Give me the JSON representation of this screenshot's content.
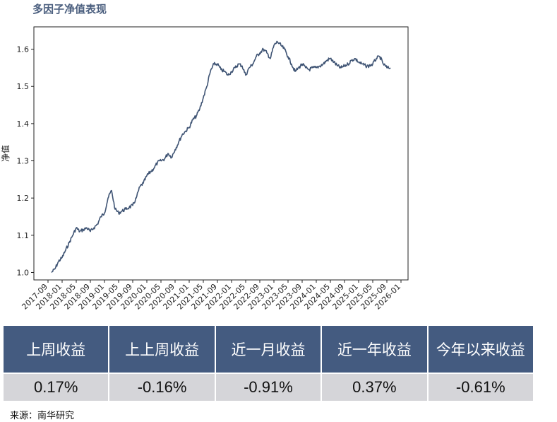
{
  "header": {
    "title": "多因子净值表现"
  },
  "chart_data": {
    "type": "line",
    "ylabel": "净值",
    "ylim": [
      0.98,
      1.66
    ],
    "yticks": [
      1.0,
      1.1,
      1.2,
      1.3,
      1.4,
      1.5,
      1.6
    ],
    "ytick_labels": [
      "1.0",
      "1.1",
      "1.2",
      "1.3",
      "1.4",
      "1.5",
      "1.6"
    ],
    "xlim": [
      "2017-05",
      "2026-03"
    ],
    "xtick_labels": [
      "2017-09",
      "2018-01",
      "2018-05",
      "2018-09",
      "2019-01",
      "2019-05",
      "2019-09",
      "2020-01",
      "2020-05",
      "2020-09",
      "2021-01",
      "2021-05",
      "2021-09",
      "2022-01",
      "2022-05",
      "2022-09",
      "2023-01",
      "2023-05",
      "2023-09",
      "2024-01",
      "2024-05",
      "2024-09",
      "2025-01",
      "2025-05",
      "2025-09",
      "2026-01"
    ],
    "line_color": "#3f5474",
    "series": [
      {
        "x": [
          "2017-10",
          "2017-11",
          "2017-12",
          "2018-01",
          "2018-02",
          "2018-03",
          "2018-04",
          "2018-05",
          "2018-06",
          "2018-07",
          "2018-08",
          "2018-09",
          "2018-10",
          "2018-11",
          "2018-12",
          "2019-01",
          "2019-02",
          "2019-03",
          "2019-04",
          "2019-05",
          "2019-06",
          "2019-07",
          "2019-08",
          "2019-09",
          "2019-10",
          "2019-11",
          "2019-12",
          "2020-01",
          "2020-02",
          "2020-03",
          "2020-04",
          "2020-05",
          "2020-06",
          "2020-07",
          "2020-08",
          "2020-09",
          "2020-10",
          "2020-11",
          "2020-12",
          "2021-01",
          "2021-02",
          "2021-03",
          "2021-04",
          "2021-05",
          "2021-06",
          "2021-07",
          "2021-08",
          "2021-09",
          "2021-10",
          "2021-11",
          "2021-12",
          "2022-01",
          "2022-02",
          "2022-03",
          "2022-04",
          "2022-05",
          "2022-06",
          "2022-07",
          "2022-08",
          "2022-09",
          "2022-10",
          "2022-11",
          "2022-12",
          "2023-01",
          "2023-02",
          "2023-03",
          "2023-04",
          "2023-05",
          "2023-06",
          "2023-07",
          "2023-08",
          "2023-09",
          "2023-10",
          "2023-11",
          "2023-12",
          "2024-01",
          "2024-02",
          "2024-03",
          "2024-04",
          "2024-05",
          "2024-06",
          "2024-07",
          "2024-08",
          "2024-09",
          "2024-10",
          "2024-11",
          "2024-12",
          "2025-01",
          "2025-02",
          "2025-03",
          "2025-04",
          "2025-05",
          "2025-06",
          "2025-07",
          "2025-08",
          "2025-09",
          "2025-10"
        ],
        "values": [
          1.0,
          1.01,
          1.03,
          1.04,
          1.06,
          1.08,
          1.1,
          1.12,
          1.11,
          1.115,
          1.12,
          1.11,
          1.12,
          1.13,
          1.15,
          1.16,
          1.2,
          1.22,
          1.17,
          1.16,
          1.165,
          1.17,
          1.175,
          1.18,
          1.2,
          1.23,
          1.24,
          1.26,
          1.27,
          1.28,
          1.295,
          1.3,
          1.305,
          1.32,
          1.31,
          1.33,
          1.35,
          1.37,
          1.38,
          1.39,
          1.41,
          1.42,
          1.44,
          1.47,
          1.5,
          1.54,
          1.56,
          1.56,
          1.545,
          1.54,
          1.53,
          1.54,
          1.55,
          1.56,
          1.555,
          1.53,
          1.55,
          1.56,
          1.58,
          1.59,
          1.6,
          1.59,
          1.575,
          1.61,
          1.62,
          1.61,
          1.6,
          1.58,
          1.56,
          1.54,
          1.55,
          1.56,
          1.55,
          1.545,
          1.55,
          1.55,
          1.555,
          1.56,
          1.57,
          1.575,
          1.565,
          1.555,
          1.55,
          1.555,
          1.56,
          1.57,
          1.575,
          1.565,
          1.56,
          1.555,
          1.555,
          1.56,
          1.575,
          1.58,
          1.56,
          1.55,
          1.55
        ]
      }
    ]
  },
  "table": {
    "headers": [
      "上周收益",
      "上上周收益",
      "近一月收益",
      "近一年收益",
      "今年以来收益"
    ],
    "values": [
      "0.17%",
      "-0.16%",
      "-0.91%",
      "0.37%",
      "-0.61%"
    ]
  },
  "footer": {
    "source": "来源：南华研究"
  }
}
